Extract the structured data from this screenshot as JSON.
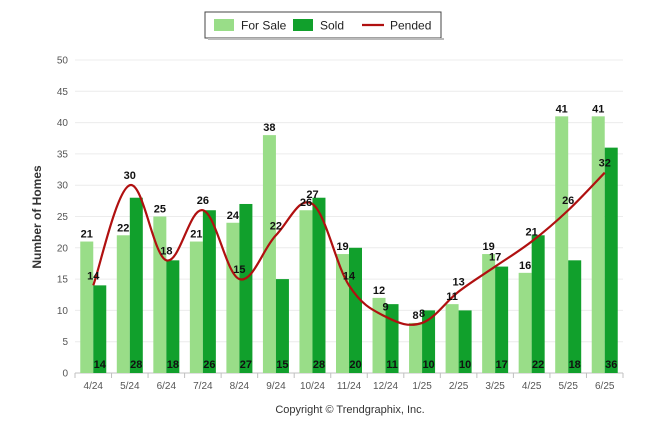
{
  "chart_data": {
    "type": "bar",
    "categories": [
      "4/24",
      "5/24",
      "6/24",
      "7/24",
      "8/24",
      "9/24",
      "10/24",
      "11/24",
      "12/24",
      "1/25",
      "2/25",
      "3/25",
      "4/25",
      "5/25",
      "6/25"
    ],
    "series": [
      {
        "name": "For Sale",
        "type": "bar",
        "color": "#99dd88",
        "values": [
          21,
          22,
          25,
          21,
          24,
          38,
          26,
          19,
          12,
          8,
          11,
          19,
          16,
          41,
          41
        ]
      },
      {
        "name": "Sold",
        "type": "bar",
        "color": "#11a02c",
        "values": [
          14,
          28,
          18,
          26,
          27,
          15,
          28,
          20,
          11,
          10,
          10,
          17,
          22,
          18,
          36
        ]
      },
      {
        "name": "Pended",
        "type": "line",
        "color": "#b01010",
        "values": [
          14,
          30,
          18,
          26,
          15,
          22,
          27,
          14,
          9,
          8,
          13,
          17,
          21,
          26,
          32
        ]
      }
    ],
    "ylabel": "Number of Homes",
    "ylim": [
      0,
      50
    ],
    "yticks": [
      0,
      5,
      10,
      15,
      20,
      25,
      30,
      35,
      40,
      45,
      50
    ],
    "grid": true,
    "legend": "top-center",
    "footer": "Copyright © Trendgraphix, Inc."
  }
}
